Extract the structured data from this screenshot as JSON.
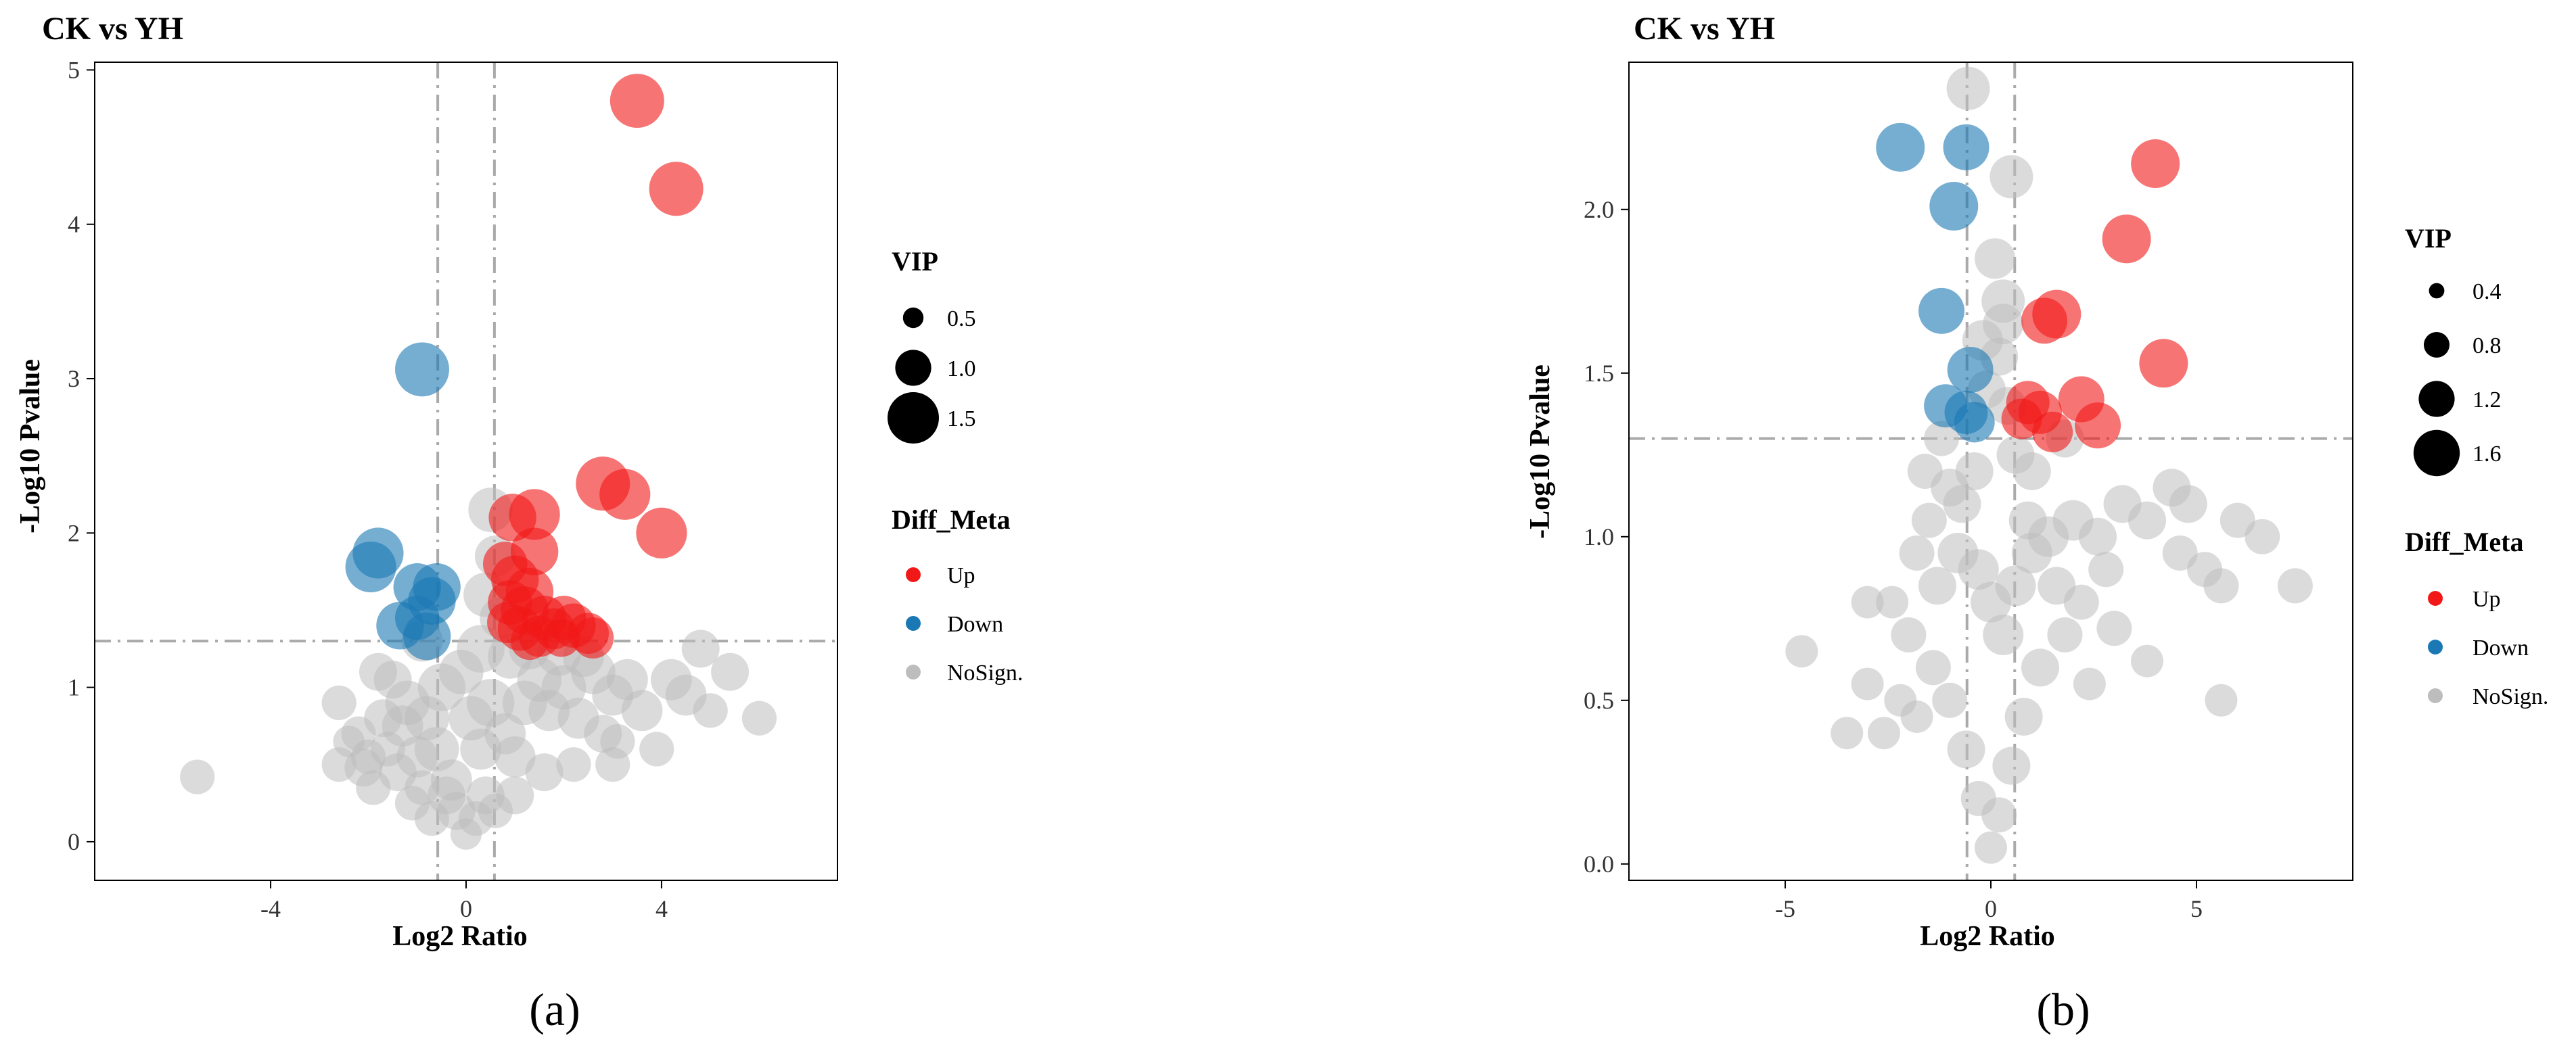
{
  "colors": {
    "up": "#F21818",
    "down": "#1A78B4",
    "nosign": "#BDBDBD",
    "guide": "#AAAAAA",
    "axis": "#000000"
  },
  "chart_data": [
    {
      "type": "scatter",
      "panel_label": "(a)",
      "title": "CK vs YH",
      "xlabel": "Log2 Ratio",
      "ylabel": "-Log10 Pvalue",
      "xlim": [
        -7.6,
        7.6
      ],
      "ylim": [
        -0.25,
        5.05
      ],
      "xticks": [
        -4,
        0,
        4
      ],
      "yticks": [
        0,
        1,
        2,
        3,
        4,
        5
      ],
      "fc_lines": [
        -0.58,
        0.58
      ],
      "p_line": 1.3,
      "grid": false,
      "legend_placement": "right",
      "size_legend": {
        "title": "VIP",
        "values": [
          0.5,
          1.0,
          1.5
        ],
        "labels": [
          "0.5",
          "1.0",
          "1.5"
        ]
      },
      "group_legend": {
        "title": "Diff_Meta",
        "entries": [
          "Up",
          "Down",
          "NoSign."
        ]
      },
      "series": [
        {
          "name": "Up",
          "points": [
            [
              3.5,
              4.8,
              1.5
            ],
            [
              4.3,
              4.23,
              1.5
            ],
            [
              2.8,
              2.32,
              1.5
            ],
            [
              3.25,
              2.25,
              1.4
            ],
            [
              4.0,
              2.0,
              1.4
            ],
            [
              1.4,
              2.12,
              1.4
            ],
            [
              0.95,
              2.1,
              1.3
            ],
            [
              1.4,
              1.88,
              1.3
            ],
            [
              0.8,
              1.8,
              1.2
            ],
            [
              1.0,
              1.7,
              1.3
            ],
            [
              1.3,
              1.62,
              1.3
            ],
            [
              0.9,
              1.55,
              1.2
            ],
            [
              1.2,
              1.5,
              1.3
            ],
            [
              1.6,
              1.45,
              1.2
            ],
            [
              2.0,
              1.45,
              1.2
            ],
            [
              2.2,
              1.4,
              1.2
            ],
            [
              2.5,
              1.35,
              1.1
            ],
            [
              1.1,
              1.38,
              1.2
            ],
            [
              1.8,
              1.38,
              1.1
            ],
            [
              1.5,
              1.33,
              1.1
            ],
            [
              0.85,
              1.42,
              1.1
            ],
            [
              2.6,
              1.32,
              1.1
            ],
            [
              1.95,
              1.32,
              1.0
            ],
            [
              1.3,
              1.3,
              1.0
            ]
          ]
        },
        {
          "name": "Down",
          "points": [
            [
              -0.9,
              3.06,
              1.5
            ],
            [
              -1.8,
              1.87,
              1.4
            ],
            [
              -1.95,
              1.78,
              1.4
            ],
            [
              -1.0,
              1.65,
              1.3
            ],
            [
              -0.6,
              1.65,
              1.3
            ],
            [
              -0.7,
              1.56,
              1.3
            ],
            [
              -1.35,
              1.4,
              1.3
            ],
            [
              -0.8,
              1.33,
              1.3
            ],
            [
              -1.0,
              1.45,
              1.2
            ]
          ]
        },
        {
          "name": "NoSign.",
          "points": [
            [
              -5.5,
              0.42,
              0.9
            ],
            [
              -2.6,
              0.9,
              0.9
            ],
            [
              -2.6,
              0.5,
              0.9
            ],
            [
              -2.1,
              0.48,
              1.0
            ],
            [
              -2.2,
              0.7,
              0.9
            ],
            [
              -2.4,
              0.65,
              0.8
            ],
            [
              -1.8,
              1.1,
              1.0
            ],
            [
              -1.5,
              1.05,
              1.0
            ],
            [
              -1.6,
              0.6,
              0.9
            ],
            [
              -1.2,
              0.9,
              1.2
            ],
            [
              -1.3,
              0.75,
              1.1
            ],
            [
              -0.9,
              1.3,
              1.1
            ],
            [
              -1.9,
              0.35,
              0.9
            ],
            [
              -1.4,
              0.45,
              1.0
            ],
            [
              -1.0,
              0.55,
              1.1
            ],
            [
              -0.8,
              0.8,
              1.2
            ],
            [
              -0.5,
              1.0,
              1.3
            ],
            [
              -0.6,
              0.6,
              1.2
            ],
            [
              -0.3,
              0.4,
              1.1
            ],
            [
              -0.2,
              0.2,
              1.0
            ],
            [
              -0.4,
              0.3,
              1.0
            ],
            [
              -1.1,
              0.25,
              0.9
            ],
            [
              -0.7,
              0.15,
              0.9
            ],
            [
              0.0,
              0.05,
              0.8
            ],
            [
              0.2,
              0.15,
              0.9
            ],
            [
              0.4,
              0.3,
              1.0
            ],
            [
              0.3,
              0.6,
              1.1
            ],
            [
              0.1,
              0.8,
              1.2
            ],
            [
              0.5,
              0.9,
              1.3
            ],
            [
              -0.1,
              1.1,
              1.2
            ],
            [
              0.3,
              1.25,
              1.3
            ],
            [
              0.5,
              2.15,
              1.2
            ],
            [
              0.6,
              1.85,
              1.1
            ],
            [
              0.4,
              1.6,
              1.2
            ],
            [
              0.7,
              1.45,
              1.1
            ],
            [
              0.9,
              1.2,
              1.2
            ],
            [
              0.8,
              0.7,
              1.1
            ],
            [
              1.0,
              0.55,
              1.1
            ],
            [
              1.2,
              0.9,
              1.2
            ],
            [
              1.5,
              1.05,
              1.2
            ],
            [
              1.7,
              0.85,
              1.1
            ],
            [
              2.0,
              1.0,
              1.2
            ],
            [
              2.3,
              0.8,
              1.1
            ],
            [
              2.6,
              1.1,
              1.2
            ],
            [
              3.0,
              0.95,
              1.1
            ],
            [
              3.3,
              1.05,
              1.1
            ],
            [
              2.8,
              0.7,
              1.0
            ],
            [
              3.6,
              0.85,
              1.1
            ],
            [
              4.2,
              1.05,
              1.1
            ],
            [
              4.5,
              0.95,
              1.1
            ],
            [
              5.4,
              1.1,
              1.0
            ],
            [
              5.0,
              0.85,
              0.9
            ],
            [
              6.0,
              0.8,
              0.9
            ],
            [
              4.8,
              1.25,
              1.0
            ],
            [
              3.9,
              0.6,
              0.9
            ],
            [
              3.0,
              0.5,
              0.9
            ],
            [
              3.1,
              0.65,
              0.9
            ],
            [
              2.2,
              0.5,
              0.9
            ],
            [
              1.6,
              0.45,
              1.0
            ],
            [
              1.0,
              0.3,
              1.0
            ],
            [
              0.6,
              0.2,
              0.9
            ],
            [
              1.9,
              1.22,
              1.2
            ],
            [
              2.4,
              1.2,
              1.1
            ],
            [
              1.3,
              1.25,
              1.1
            ],
            [
              -0.9,
              0.35,
              0.9
            ],
            [
              -1.7,
              0.8,
              1.0
            ],
            [
              -2.0,
              0.55,
              0.9
            ]
          ]
        }
      ]
    },
    {
      "type": "scatter",
      "panel_label": "(b)",
      "title": "CK vs YH",
      "xlabel": "Log2 Ratio",
      "ylabel": "-Log10 Pvalue",
      "xlim": [
        -8.8,
        8.8
      ],
      "ylim": [
        -0.05,
        2.45
      ],
      "xticks": [
        -5,
        0,
        5
      ],
      "yticks": [
        0.0,
        0.5,
        1.0,
        1.5,
        2.0
      ],
      "ytick_labels": [
        "0.0",
        "0.5",
        "1.0",
        "1.5",
        "2.0"
      ],
      "fc_lines": [
        -0.58,
        0.58
      ],
      "p_line": 1.3,
      "grid": false,
      "legend_placement": "right",
      "size_legend": {
        "title": "VIP",
        "values": [
          0.4,
          0.8,
          1.2,
          1.6
        ],
        "labels": [
          "0.4",
          "0.8",
          "1.2",
          "1.6"
        ]
      },
      "group_legend": {
        "title": "Diff_Meta",
        "entries": [
          "Up",
          "Down",
          "NoSign."
        ]
      },
      "series": [
        {
          "name": "Up",
          "points": [
            [
              4.0,
              2.14,
              1.6
            ],
            [
              3.3,
              1.91,
              1.6
            ],
            [
              4.2,
              1.53,
              1.6
            ],
            [
              1.6,
              1.68,
              1.6
            ],
            [
              1.3,
              1.66,
              1.5
            ],
            [
              2.2,
              1.42,
              1.5
            ],
            [
              2.6,
              1.34,
              1.5
            ],
            [
              0.9,
              1.41,
              1.4
            ],
            [
              1.2,
              1.38,
              1.4
            ],
            [
              1.5,
              1.32,
              1.3
            ],
            [
              0.75,
              1.36,
              1.3
            ]
          ]
        },
        {
          "name": "Down",
          "points": [
            [
              -2.2,
              2.19,
              1.6
            ],
            [
              -0.6,
              2.19,
              1.5
            ],
            [
              -0.9,
              2.01,
              1.6
            ],
            [
              -1.2,
              1.69,
              1.5
            ],
            [
              -0.5,
              1.51,
              1.5
            ],
            [
              -1.1,
              1.4,
              1.4
            ],
            [
              -0.6,
              1.38,
              1.4
            ],
            [
              -0.4,
              1.35,
              1.3
            ]
          ]
        },
        {
          "name": "NoSign.",
          "points": [
            [
              -0.55,
              2.37,
              1.4
            ],
            [
              0.5,
              2.1,
              1.4
            ],
            [
              0.1,
              1.85,
              1.3
            ],
            [
              0.3,
              1.72,
              1.4
            ],
            [
              -0.2,
              1.6,
              1.3
            ],
            [
              0.2,
              1.55,
              1.2
            ],
            [
              0.4,
              1.4,
              1.2
            ],
            [
              0.6,
              1.25,
              1.2
            ],
            [
              -0.4,
              1.2,
              1.2
            ],
            [
              -1.0,
              1.15,
              1.2
            ],
            [
              -1.5,
              1.05,
              1.1
            ],
            [
              -1.8,
              0.95,
              1.1
            ],
            [
              -2.0,
              0.7,
              1.1
            ],
            [
              -1.3,
              0.85,
              1.2
            ],
            [
              -0.8,
              0.95,
              1.3
            ],
            [
              -0.3,
              0.9,
              1.3
            ],
            [
              0.0,
              0.8,
              1.3
            ],
            [
              0.3,
              0.7,
              1.3
            ],
            [
              0.6,
              0.85,
              1.3
            ],
            [
              1.0,
              0.95,
              1.3
            ],
            [
              1.4,
              1.0,
              1.3
            ],
            [
              2.0,
              1.05,
              1.3
            ],
            [
              2.6,
              1.0,
              1.2
            ],
            [
              3.2,
              1.1,
              1.2
            ],
            [
              3.8,
              1.05,
              1.2
            ],
            [
              4.4,
              1.15,
              1.2
            ],
            [
              4.8,
              1.1,
              1.2
            ],
            [
              5.2,
              0.9,
              1.1
            ],
            [
              5.6,
              0.85,
              1.1
            ],
            [
              6.6,
              1.0,
              1.1
            ],
            [
              7.4,
              0.85,
              1.1
            ],
            [
              5.6,
              0.5,
              1.0
            ],
            [
              3.8,
              0.62,
              1.0
            ],
            [
              3.0,
              0.72,
              1.1
            ],
            [
              2.4,
              0.55,
              1.0
            ],
            [
              1.8,
              0.7,
              1.1
            ],
            [
              1.2,
              0.6,
              1.2
            ],
            [
              0.8,
              0.45,
              1.2
            ],
            [
              0.5,
              0.3,
              1.2
            ],
            [
              0.2,
              0.15,
              1.1
            ],
            [
              0.0,
              0.05,
              1.0
            ],
            [
              -0.3,
              0.2,
              1.1
            ],
            [
              -0.6,
              0.35,
              1.2
            ],
            [
              -1.0,
              0.5,
              1.1
            ],
            [
              -1.4,
              0.6,
              1.1
            ],
            [
              -1.8,
              0.45,
              1.0
            ],
            [
              -2.2,
              0.5,
              1.0
            ],
            [
              -2.6,
              0.4,
              1.0
            ],
            [
              -3.0,
              0.55,
              1.0
            ],
            [
              -3.5,
              0.4,
              1.0
            ],
            [
              -4.6,
              0.65,
              1.0
            ],
            [
              -3.0,
              0.8,
              1.0
            ],
            [
              -1.6,
              1.2,
              1.1
            ],
            [
              -1.2,
              1.3,
              1.1
            ],
            [
              1.0,
              1.2,
              1.2
            ],
            [
              1.8,
              1.3,
              1.2
            ],
            [
              2.8,
              0.9,
              1.1
            ],
            [
              4.6,
              0.95,
              1.1
            ],
            [
              6.0,
              1.05,
              1.1
            ],
            [
              -0.7,
              1.1,
              1.2
            ],
            [
              0.9,
              1.05,
              1.2
            ],
            [
              1.6,
              0.85,
              1.2
            ],
            [
              -2.4,
              0.8,
              1.0
            ],
            [
              0.3,
              1.65,
              1.3
            ],
            [
              -0.1,
              1.45,
              1.2
            ],
            [
              2.2,
              0.8,
              1.1
            ]
          ]
        }
      ]
    }
  ]
}
